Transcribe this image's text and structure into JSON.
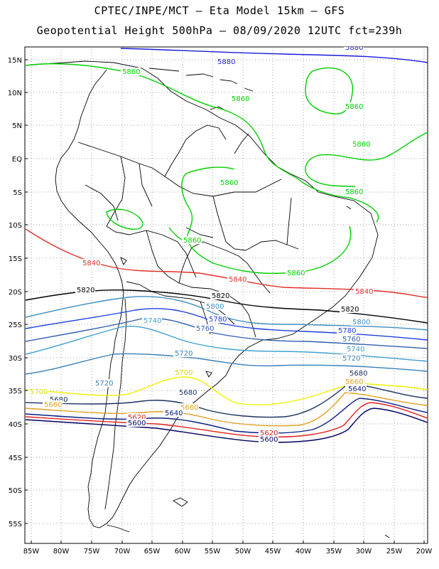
{
  "header": {
    "line1": "CPTEC/INPE/MCT –  Eta Model 15km – GFS",
    "line2": "Geopotential Height 500hPa – 08/09/2020 12UTC fct=239h"
  },
  "axes": {
    "lat_labels": [
      "15N",
      "10N",
      "5N",
      "EQ",
      "5S",
      "10S",
      "15S",
      "20S",
      "25S",
      "30S",
      "35S",
      "40S",
      "45S",
      "50S",
      "55S"
    ],
    "lon_labels": [
      "85W",
      "80W",
      "75W",
      "70W",
      "65W",
      "60W",
      "55W",
      "50W",
      "45W",
      "40W",
      "35W",
      "30W",
      "25W",
      "20W"
    ],
    "lon_range": [
      -86,
      -20
    ],
    "lat_range": [
      -58,
      16
    ]
  },
  "contours": [
    {
      "value": "5880",
      "color": "#1a1adc"
    },
    {
      "value": "5860",
      "color": "#00d000"
    },
    {
      "value": "5840",
      "color": "#e0302a"
    },
    {
      "value": "5820",
      "color": "#000000"
    },
    {
      "value": "5800",
      "color": "#3f8fbf"
    },
    {
      "value": "5780",
      "color": "#1f3fdf"
    },
    {
      "value": "5760",
      "color": "#2f5faf"
    },
    {
      "value": "5740",
      "color": "#3fa0d0"
    },
    {
      "value": "5720",
      "color": "#3b7fb8"
    },
    {
      "value": "5700",
      "color": "#f0f000"
    },
    {
      "value": "5680",
      "color": "#1a3060"
    },
    {
      "value": "5660",
      "color": "#e0a020"
    },
    {
      "value": "5640",
      "color": "#0a2080"
    },
    {
      "value": "5620",
      "color": "#e02020"
    },
    {
      "value": "5600",
      "color": "#000060"
    }
  ],
  "contour_labels": [
    {
      "text": "5880",
      "color": "#1a1adc"
    },
    {
      "text": "5880",
      "color": "#1a1adc"
    },
    {
      "text": "5860",
      "color": "#00d000"
    },
    {
      "text": "5860",
      "color": "#00d000"
    },
    {
      "text": "5860",
      "color": "#00d000"
    },
    {
      "text": "5860",
      "color": "#00d000"
    },
    {
      "text": "5860",
      "color": "#00d000"
    },
    {
      "text": "5860",
      "color": "#00d000"
    },
    {
      "text": "5860",
      "color": "#00d000"
    },
    {
      "text": "5860",
      "color": "#00d000"
    },
    {
      "text": "5840",
      "color": "#e0302a"
    },
    {
      "text": "5840",
      "color": "#e0302a"
    },
    {
      "text": "5840",
      "color": "#e0302a"
    },
    {
      "text": "5820",
      "color": "#000000"
    },
    {
      "text": "5820",
      "color": "#000000"
    },
    {
      "text": "5820",
      "color": "#000000"
    },
    {
      "text": "5800",
      "color": "#3f8fbf"
    },
    {
      "text": "5800",
      "color": "#3f8fbf"
    },
    {
      "text": "5780",
      "color": "#1f3fdf"
    },
    {
      "text": "5780",
      "color": "#1f3fdf"
    },
    {
      "text": "5760",
      "color": "#2f5faf"
    },
    {
      "text": "5760",
      "color": "#2f5faf"
    },
    {
      "text": "5740",
      "color": "#3fa0d0"
    },
    {
      "text": "5740",
      "color": "#3fa0d0"
    },
    {
      "text": "5720",
      "color": "#3b7fb8"
    },
    {
      "text": "5720",
      "color": "#3b7fb8"
    },
    {
      "text": "5720",
      "color": "#3b7fb8"
    },
    {
      "text": "5700",
      "color": "#d8d800"
    },
    {
      "text": "5700",
      "color": "#d8d800"
    },
    {
      "text": "5700",
      "color": "#d8d800"
    },
    {
      "text": "5680",
      "color": "#1a3060"
    },
    {
      "text": "5680",
      "color": "#1a3060"
    },
    {
      "text": "5680",
      "color": "#1a3060"
    },
    {
      "text": "5660",
      "color": "#e0a020"
    },
    {
      "text": "5660",
      "color": "#e0a020"
    },
    {
      "text": "5660",
      "color": "#e0a020"
    },
    {
      "text": "5640",
      "color": "#0a2080"
    },
    {
      "text": "5640",
      "color": "#0a2080"
    },
    {
      "text": "5620",
      "color": "#e02020"
    },
    {
      "text": "5620",
      "color": "#e02020"
    },
    {
      "text": "5600",
      "color": "#000060"
    },
    {
      "text": "5600",
      "color": "#000060"
    }
  ]
}
